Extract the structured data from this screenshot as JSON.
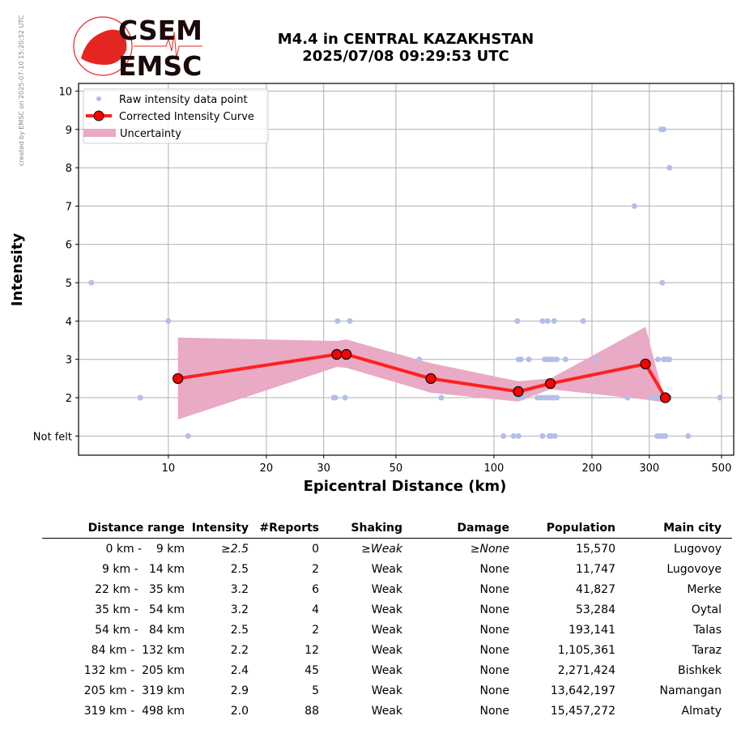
{
  "header": {
    "title_line1": "M4.4 in CENTRAL KAZAKHSTAN",
    "title_line2": "2025/07/08 09:29:53 UTC",
    "credit": "created by EMSC on 2025-07-10 15:20:52 UTC",
    "logo_text": "CSEM EMSC"
  },
  "colors": {
    "raw": "#b3bfe8",
    "curve": "#ff2020",
    "marker": "#ff0000",
    "uncertainty": "#e8aac4"
  },
  "chart_data": {
    "type": "line",
    "xlabel": "Epicentral Distance (km)",
    "ylabel": "Intensity",
    "xscale": "log",
    "xlim": [
      5.3,
      545
    ],
    "ylim": [
      0.5,
      10.2
    ],
    "grid": true,
    "legend": "top-left",
    "xticks": [
      {
        "v": 10,
        "l": "10"
      },
      {
        "v": 20,
        "l": "20"
      },
      {
        "v": 30,
        "l": "30"
      },
      {
        "v": 50,
        "l": "50"
      },
      {
        "v": 100,
        "l": "100"
      },
      {
        "v": 200,
        "l": "200"
      },
      {
        "v": 300,
        "l": "300"
      },
      {
        "v": 500,
        "l": "500"
      }
    ],
    "yticks": [
      {
        "v": 1,
        "l": "Not felt"
      },
      {
        "v": 2,
        "l": "2"
      },
      {
        "v": 3,
        "l": "3"
      },
      {
        "v": 4,
        "l": "4"
      },
      {
        "v": 5,
        "l": "5"
      },
      {
        "v": 6,
        "l": "6"
      },
      {
        "v": 7,
        "l": "7"
      },
      {
        "v": 8,
        "l": "8"
      },
      {
        "v": 9,
        "l": "9"
      },
      {
        "v": 10,
        "l": "10"
      }
    ],
    "legend_entries": [
      "Raw intensity data point",
      "Corrected Intensity Curve",
      "Uncertainty"
    ],
    "curve": {
      "x": [
        10.7,
        32.9,
        35.2,
        64,
        118.8,
        149,
        292,
        336
      ],
      "y": [
        2.5,
        3.13,
        3.13,
        2.5,
        2.16,
        2.37,
        2.88,
        2.0
      ]
    },
    "uncertainty": {
      "x": [
        10.7,
        32.9,
        35.2,
        64,
        118.8,
        149,
        292,
        336
      ],
      "upper": [
        3.57,
        3.48,
        3.52,
        2.9,
        2.43,
        2.5,
        3.85,
        1.87
      ],
      "lower": [
        1.43,
        2.8,
        2.78,
        2.13,
        1.9,
        2.22,
        1.95,
        1.87
      ]
    },
    "raw_points": [
      [
        5.8,
        5
      ],
      [
        8.2,
        2
      ],
      [
        10,
        4
      ],
      [
        11.5,
        1
      ],
      [
        32.2,
        2
      ],
      [
        32.6,
        2
      ],
      [
        33.1,
        4
      ],
      [
        34.9,
        2
      ],
      [
        36.1,
        4
      ],
      [
        59,
        3
      ],
      [
        68.9,
        2
      ],
      [
        107,
        1
      ],
      [
        115,
        1
      ],
      [
        119,
        1
      ],
      [
        118,
        4
      ],
      [
        119,
        3
      ],
      [
        121,
        3
      ],
      [
        118,
        2
      ],
      [
        120,
        2
      ],
      [
        122,
        2
      ],
      [
        128,
        3
      ],
      [
        136,
        2
      ],
      [
        140,
        2
      ],
      [
        141,
        1
      ],
      [
        141,
        4
      ],
      [
        146,
        4
      ],
      [
        153,
        4
      ],
      [
        143,
        3
      ],
      [
        146,
        3
      ],
      [
        149,
        3
      ],
      [
        152,
        3
      ],
      [
        156,
        3
      ],
      [
        144,
        2
      ],
      [
        148,
        2
      ],
      [
        152,
        2
      ],
      [
        156,
        2
      ],
      [
        148,
        1
      ],
      [
        150,
        1
      ],
      [
        154,
        1
      ],
      [
        166,
        3
      ],
      [
        188,
        4
      ],
      [
        206,
        3
      ],
      [
        257,
        2
      ],
      [
        270,
        7
      ],
      [
        305,
        2
      ],
      [
        317,
        2
      ],
      [
        319,
        3
      ],
      [
        317,
        1
      ],
      [
        322,
        1
      ],
      [
        327,
        1
      ],
      [
        332,
        1
      ],
      [
        336,
        1
      ],
      [
        326,
        9
      ],
      [
        332,
        9
      ],
      [
        329,
        5
      ],
      [
        332,
        3
      ],
      [
        336,
        3
      ],
      [
        341,
        3
      ],
      [
        346,
        3
      ],
      [
        336,
        2
      ],
      [
        341,
        2
      ],
      [
        346,
        2
      ],
      [
        346,
        8
      ],
      [
        395,
        1
      ],
      [
        494,
        2
      ]
    ]
  },
  "table": {
    "headers": [
      "Distance range",
      "Intensity",
      "#Reports",
      "Shaking",
      "Damage",
      "Population",
      "Main city"
    ],
    "rows": [
      [
        "0 km -    9 km",
        "≥2.5",
        "0",
        "≥Weak",
        "≥None",
        "15,570",
        "Lugovoy"
      ],
      [
        "9 km -   14 km",
        "2.5",
        "2",
        "Weak",
        "None",
        "11,747",
        "Lugovoye"
      ],
      [
        "22 km -   35 km",
        "3.2",
        "6",
        "Weak",
        "None",
        "41,827",
        "Merke"
      ],
      [
        "35 km -   54 km",
        "3.2",
        "4",
        "Weak",
        "None",
        "53,284",
        "Oytal"
      ],
      [
        "54 km -   84 km",
        "2.5",
        "2",
        "Weak",
        "None",
        "193,141",
        "Talas"
      ],
      [
        "84 km -  132 km",
        "2.2",
        "12",
        "Weak",
        "None",
        "1,105,361",
        "Taraz"
      ],
      [
        "132 km -  205 km",
        "2.4",
        "45",
        "Weak",
        "None",
        "2,271,424",
        "Bishkek"
      ],
      [
        "205 km -  319 km",
        "2.9",
        "5",
        "Weak",
        "None",
        "13,642,197",
        "Namangan"
      ],
      [
        "319 km -  498 km",
        "2.0",
        "88",
        "Weak",
        "None",
        "15,457,272",
        "Almaty"
      ]
    ]
  }
}
